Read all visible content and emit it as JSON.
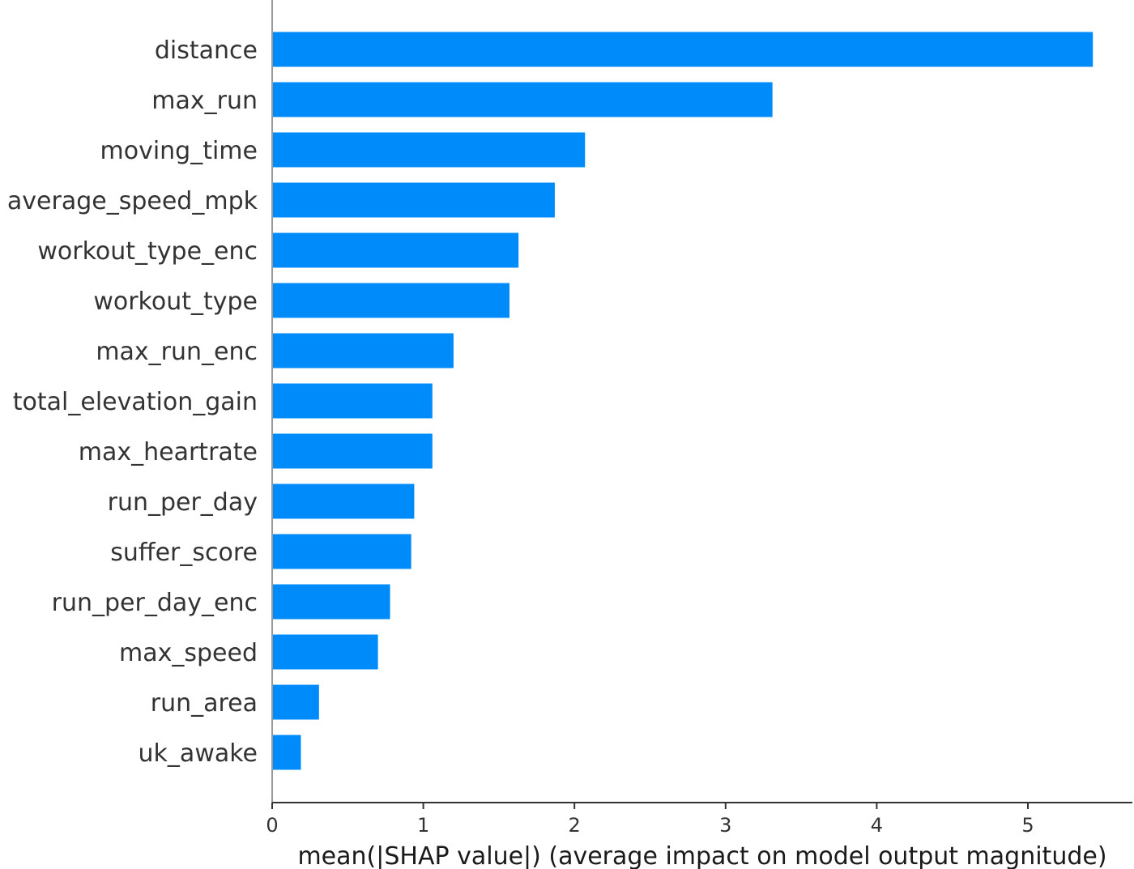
{
  "chart_data": {
    "type": "bar",
    "orientation": "horizontal",
    "title": "",
    "xlabel": "mean(|SHAP value|) (average impact on model output magnitude)",
    "ylabel": "",
    "xlim": [
      0,
      5.7
    ],
    "xticks": [
      "0",
      "1",
      "2",
      "3",
      "4",
      "5"
    ],
    "bar_color": "#008bfb",
    "axis_color": "#333333",
    "grid": false,
    "categories": [
      "distance",
      "max_run",
      "moving_time",
      "average_speed_mpk",
      "workout_type_enc",
      "workout_type",
      "max_run_enc",
      "total_elevation_gain",
      "max_heartrate",
      "run_per_day",
      "suffer_score",
      "run_per_day_enc",
      "max_speed",
      "run_area",
      "uk_awake"
    ],
    "values": [
      5.43,
      3.31,
      2.07,
      1.87,
      1.63,
      1.57,
      1.2,
      1.06,
      1.06,
      0.94,
      0.92,
      0.78,
      0.7,
      0.31,
      0.19
    ]
  }
}
